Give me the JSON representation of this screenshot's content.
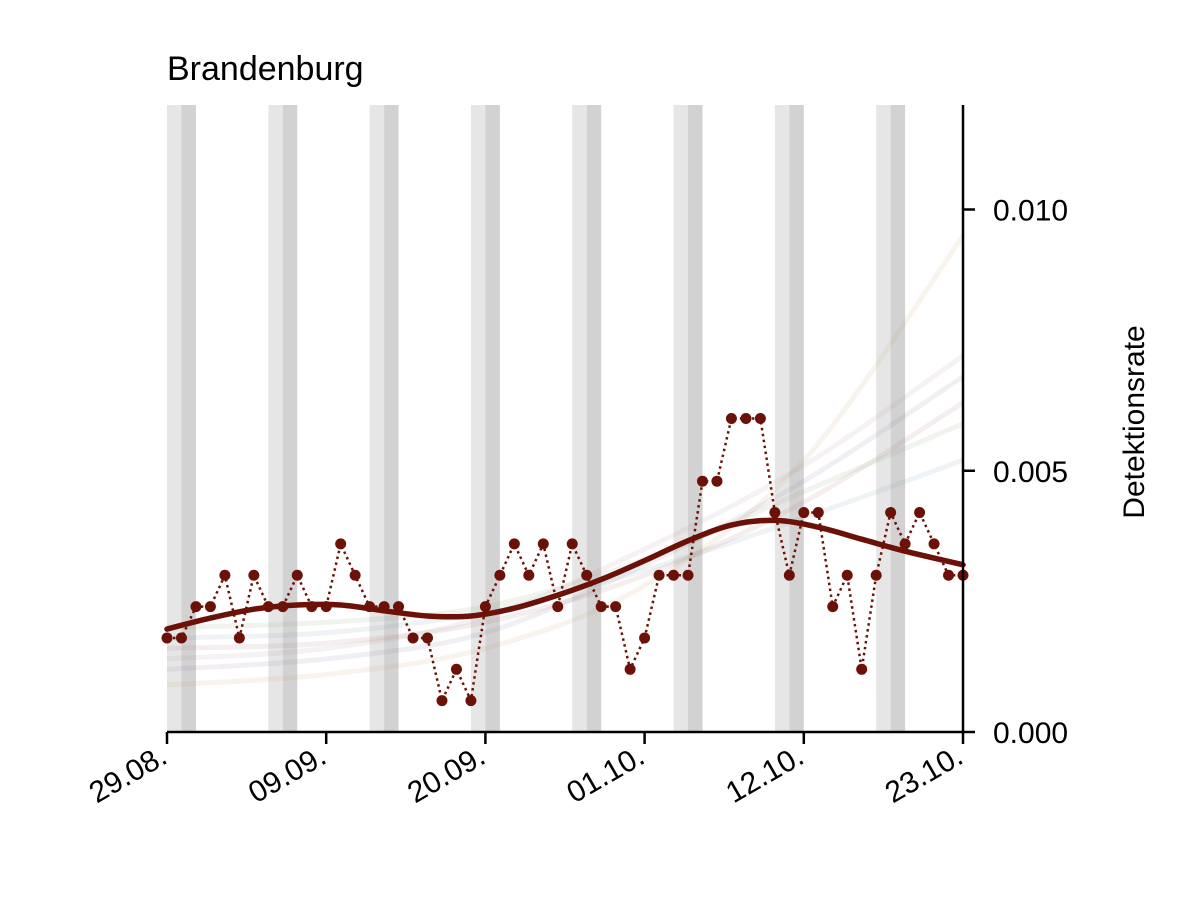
{
  "chart_data": {
    "type": "line",
    "title": "Brandenburg",
    "xlabel": "",
    "ylabel": "Detektionsrate",
    "x_range": [
      "2020-08-29",
      "2020-10-23"
    ],
    "ylim": [
      0,
      0.012
    ],
    "y_axis_position": "right",
    "grid": false,
    "legend": "none",
    "x_ticks": [
      {
        "date": "2020-08-29",
        "label": "29.08."
      },
      {
        "date": "2020-09-09",
        "label": "09.09."
      },
      {
        "date": "2020-09-20",
        "label": "20.09."
      },
      {
        "date": "2020-10-01",
        "label": "01.10."
      },
      {
        "date": "2020-10-12",
        "label": "12.10."
      },
      {
        "date": "2020-10-23",
        "label": "23.10."
      }
    ],
    "y_ticks": [
      {
        "value": 0.0,
        "label": "0.000"
      },
      {
        "value": 0.005,
        "label": "0.005"
      },
      {
        "value": 0.01,
        "label": "0.010"
      }
    ],
    "weekend_bands": [
      {
        "saturday": "2020-08-29",
        "sunday": "2020-08-30"
      },
      {
        "saturday": "2020-09-05",
        "sunday": "2020-09-06"
      },
      {
        "saturday": "2020-09-12",
        "sunday": "2020-09-13"
      },
      {
        "saturday": "2020-09-19",
        "sunday": "2020-09-20"
      },
      {
        "saturday": "2020-09-26",
        "sunday": "2020-09-27"
      },
      {
        "saturday": "2020-10-03",
        "sunday": "2020-10-04"
      },
      {
        "saturday": "2020-10-10",
        "sunday": "2020-10-11"
      },
      {
        "saturday": "2020-10-17",
        "sunday": "2020-10-18"
      }
    ],
    "colors": {
      "highlight": "#6b1108",
      "saturday_band": "#e6e6e6",
      "sunday_band": "#d2d2d2",
      "background_series": [
        "#b07070",
        "#8c7fa8",
        "#8aa870",
        "#c7a36a",
        "#7a9cb0",
        "#b48a9e"
      ]
    },
    "series": [
      {
        "role": "highlight-daily",
        "style": "dotted-with-markers",
        "x": [
          "2020-08-29",
          "2020-08-30",
          "2020-08-31",
          "2020-09-01",
          "2020-09-02",
          "2020-09-03",
          "2020-09-04",
          "2020-09-05",
          "2020-09-06",
          "2020-09-07",
          "2020-09-08",
          "2020-09-09",
          "2020-09-10",
          "2020-09-11",
          "2020-09-12",
          "2020-09-13",
          "2020-09-14",
          "2020-09-15",
          "2020-09-16",
          "2020-09-17",
          "2020-09-18",
          "2020-09-19",
          "2020-09-20",
          "2020-09-21",
          "2020-09-22",
          "2020-09-23",
          "2020-09-24",
          "2020-09-25",
          "2020-09-26",
          "2020-09-27",
          "2020-09-28",
          "2020-09-29",
          "2020-09-30",
          "2020-10-01",
          "2020-10-02",
          "2020-10-03",
          "2020-10-04",
          "2020-10-05",
          "2020-10-06",
          "2020-10-07",
          "2020-10-08",
          "2020-10-09",
          "2020-10-10",
          "2020-10-11",
          "2020-10-12",
          "2020-10-13",
          "2020-10-14",
          "2020-10-15",
          "2020-10-16",
          "2020-10-17",
          "2020-10-18",
          "2020-10-19",
          "2020-10-20",
          "2020-10-21",
          "2020-10-22",
          "2020-10-23"
        ],
        "y": [
          0.0018,
          0.0018,
          0.0024,
          0.0024,
          0.003,
          0.0018,
          0.003,
          0.0024,
          0.0024,
          0.003,
          0.0024,
          0.0024,
          0.0036,
          0.003,
          0.0024,
          0.0024,
          0.0024,
          0.0018,
          0.0018,
          0.0006,
          0.0012,
          0.0006,
          0.0024,
          0.003,
          0.0036,
          0.003,
          0.0036,
          0.0024,
          0.0036,
          0.003,
          0.0024,
          0.0024,
          0.0012,
          0.0018,
          0.003,
          0.003,
          0.003,
          0.0048,
          0.0048,
          0.006,
          0.006,
          0.006,
          0.0042,
          0.003,
          0.0042,
          0.0042,
          0.0024,
          0.003,
          0.0012,
          0.003,
          0.0042,
          0.0036,
          0.0042,
          0.0036,
          0.003,
          0.003
        ]
      },
      {
        "role": "highlight-smoothed",
        "style": "solid",
        "x": [
          "2020-08-29",
          "2020-09-01",
          "2020-09-04",
          "2020-09-07",
          "2020-09-10",
          "2020-09-13",
          "2020-09-16",
          "2020-09-19",
          "2020-09-22",
          "2020-09-25",
          "2020-09-28",
          "2020-10-01",
          "2020-10-04",
          "2020-10-07",
          "2020-10-10",
          "2020-10-13",
          "2020-10-16",
          "2020-10-19",
          "2020-10-23"
        ],
        "y": [
          0.00197,
          0.00218,
          0.00235,
          0.00243,
          0.00243,
          0.00232,
          0.00222,
          0.00222,
          0.00237,
          0.00262,
          0.00292,
          0.00328,
          0.00366,
          0.00396,
          0.00405,
          0.00392,
          0.00369,
          0.00346,
          0.0032
        ]
      },
      {
        "role": "background-smoothed",
        "style": "faint",
        "x": [
          "2020-08-29",
          "2020-09-09",
          "2020-09-20",
          "2020-10-01",
          "2020-10-12",
          "2020-10-23"
        ],
        "y": [
          0.0016,
          0.0017,
          0.0021,
          0.003,
          0.0044,
          0.0063
        ]
      },
      {
        "role": "background-smoothed",
        "style": "faint",
        "x": [
          "2020-08-29",
          "2020-09-09",
          "2020-09-20",
          "2020-10-01",
          "2020-10-12",
          "2020-10-23"
        ],
        "y": [
          0.0012,
          0.0014,
          0.0019,
          0.0032,
          0.0048,
          0.0068
        ]
      },
      {
        "role": "background-smoothed",
        "style": "faint",
        "x": [
          "2020-08-29",
          "2020-09-09",
          "2020-09-20",
          "2020-10-01",
          "2020-10-12",
          "2020-10-23"
        ],
        "y": [
          0.002,
          0.0021,
          0.0024,
          0.0033,
          0.0046,
          0.0059
        ]
      },
      {
        "role": "background-smoothed",
        "style": "faint",
        "x": [
          "2020-08-29",
          "2020-09-09",
          "2020-09-20",
          "2020-10-01",
          "2020-10-12",
          "2020-10-23"
        ],
        "y": [
          0.0009,
          0.0011,
          0.0016,
          0.0028,
          0.0052,
          0.0095
        ]
      },
      {
        "role": "background-smoothed",
        "style": "faint",
        "x": [
          "2020-08-29",
          "2020-09-09",
          "2020-09-20",
          "2020-10-01",
          "2020-10-12",
          "2020-10-23"
        ],
        "y": [
          0.0018,
          0.0019,
          0.0023,
          0.0031,
          0.0041,
          0.0052
        ]
      },
      {
        "role": "background-smoothed",
        "style": "faint",
        "x": [
          "2020-08-29",
          "2020-09-09",
          "2020-09-20",
          "2020-10-01",
          "2020-10-12",
          "2020-10-23"
        ],
        "y": [
          0.0014,
          0.0016,
          0.0022,
          0.0035,
          0.0051,
          0.0072
        ]
      }
    ]
  }
}
